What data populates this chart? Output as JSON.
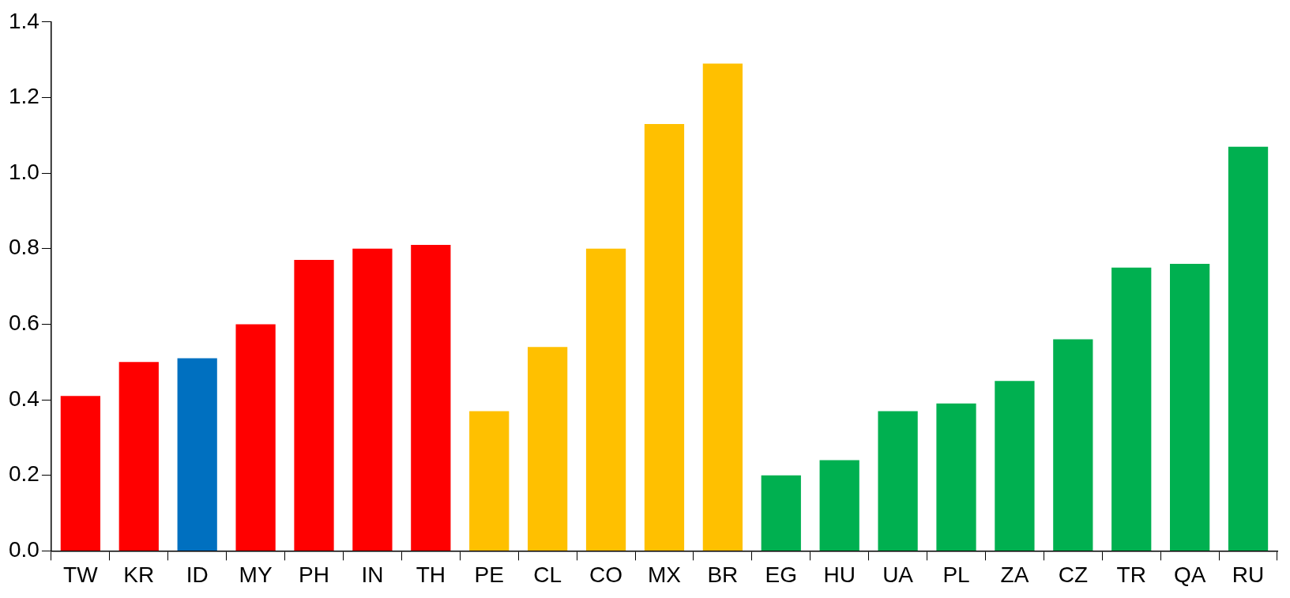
{
  "chart_data": {
    "type": "bar",
    "categories": [
      "TW",
      "KR",
      "ID",
      "MY",
      "PH",
      "IN",
      "TH",
      "PE",
      "CL",
      "CO",
      "MX",
      "BR",
      "EG",
      "HU",
      "UA",
      "PL",
      "ZA",
      "CZ",
      "TR",
      "QA",
      "RU"
    ],
    "values": [
      0.41,
      0.5,
      0.51,
      0.6,
      0.77,
      0.8,
      0.81,
      0.37,
      0.54,
      0.8,
      1.13,
      1.29,
      0.2,
      0.24,
      0.37,
      0.39,
      0.45,
      0.56,
      0.75,
      0.76,
      1.07
    ],
    "colors": [
      "#ff0000",
      "#ff0000",
      "#0070c0",
      "#ff0000",
      "#ff0000",
      "#ff0000",
      "#ff0000",
      "#ffc000",
      "#ffc000",
      "#ffc000",
      "#ffc000",
      "#ffc000",
      "#00b050",
      "#00b050",
      "#00b050",
      "#00b050",
      "#00b050",
      "#00b050",
      "#00b050",
      "#00b050",
      "#00b050"
    ],
    "ylim": [
      0,
      1.4
    ],
    "yticks": [
      {
        "value": 0,
        "label": "0.0"
      },
      {
        "value": 0.2,
        "label": "0.2"
      },
      {
        "value": 0.4,
        "label": "0.4"
      },
      {
        "value": 0.6,
        "label": "0.6"
      },
      {
        "value": 0.8,
        "label": "0.8"
      },
      {
        "value": 1,
        "label": "1.0"
      },
      {
        "value": 1.2,
        "label": "1.2"
      },
      {
        "value": 1.4,
        "label": "1.4"
      }
    ],
    "grid": false,
    "legend": false
  }
}
